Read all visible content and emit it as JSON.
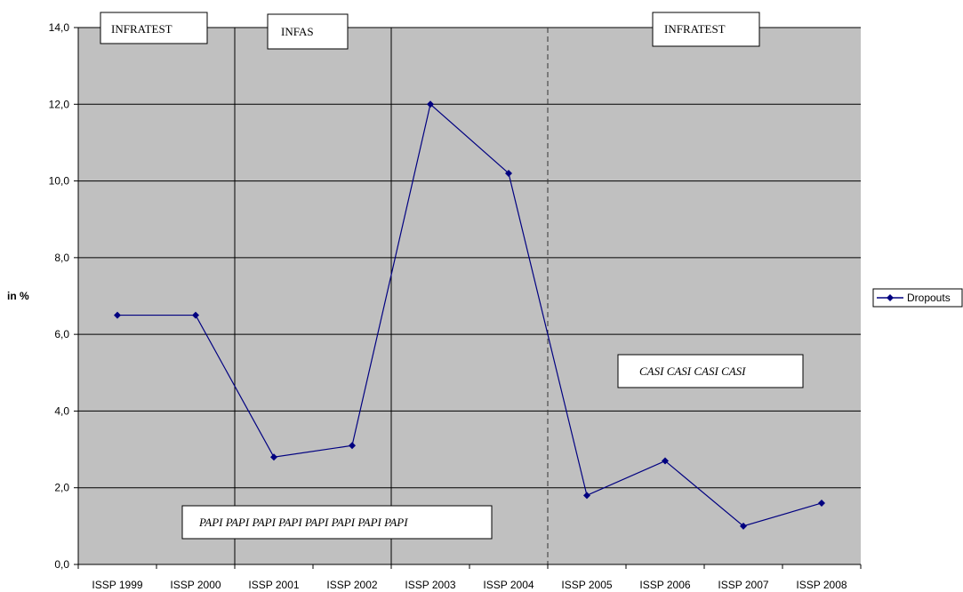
{
  "chart_data": {
    "type": "line",
    "categories": [
      "ISSP 1999",
      "ISSP 2000",
      "ISSP 2001",
      "ISSP 2002",
      "ISSP 2003",
      "ISSP 2004",
      "ISSP 2005",
      "ISSP 2006",
      "ISSP 2007",
      "ISSP 2008"
    ],
    "series": [
      {
        "name": "Dropouts",
        "values": [
          6.5,
          6.5,
          2.8,
          3.1,
          12.0,
          10.2,
          1.8,
          2.7,
          1.0,
          1.6
        ]
      }
    ],
    "ylabel": "in %",
    "ylim": [
      0,
      14
    ],
    "yticks": [
      "0,0",
      "2,0",
      "4,0",
      "6,0",
      "8,0",
      "10,0",
      "12,0",
      "14,0"
    ],
    "grid": true,
    "legend_position": "right",
    "annotations": {
      "institute_1": "INFRATEST",
      "institute_2": "INFAS",
      "institute_3": "INFRATEST",
      "mode_papi": "PAPI PAPI PAPI PAPI PAPI PAPI PAPI PAPI",
      "mode_casi": "CASI CASI CASI CASI"
    },
    "colors": {
      "plot_background": "#c0c0c0",
      "series": "#000080",
      "gridline": "#000000"
    }
  }
}
